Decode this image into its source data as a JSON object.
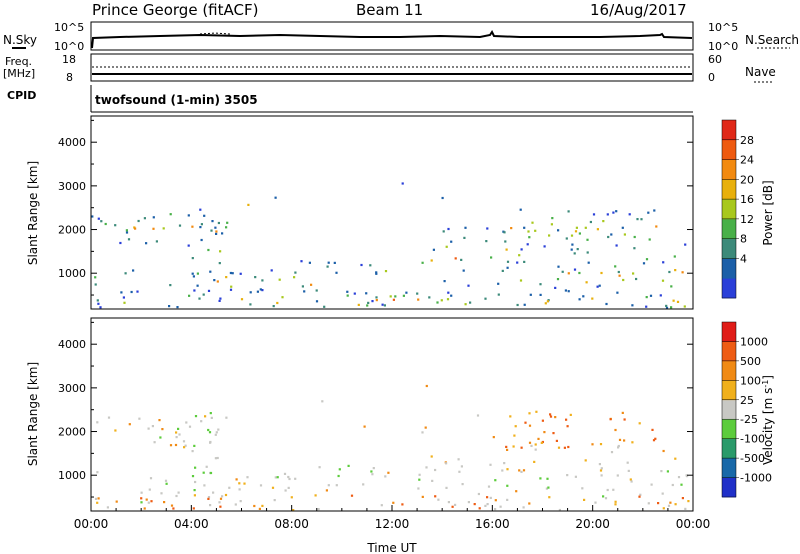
{
  "header": {
    "site": "Prince George (fitACF)",
    "beam": "Beam 11",
    "date": "16/Aug/2017"
  },
  "panels": {
    "nsky": {
      "left_label": "N.Sky",
      "right_label": "N.Search",
      "left_ticks": [
        "10^5",
        "10^0"
      ],
      "right_ticks": [
        "10^5",
        "10^0"
      ]
    },
    "freq": {
      "left_label_1": "Freq.",
      "left_label_2": "[MHz]",
      "right_label": "Nave",
      "left_ticks": [
        "18",
        "8"
      ],
      "right_ticks": [
        "60",
        "0"
      ]
    },
    "cpid": {
      "label": "CPID",
      "text": "twofsound (1-min) 3505"
    }
  },
  "chart_data": [
    {
      "type": "heatmap",
      "name": "power",
      "ylabel": "Slant Range [km]",
      "yticks": [
        1000,
        2000,
        3000,
        4000
      ],
      "ylim": [
        180,
        4600
      ],
      "xlim": [
        0,
        24
      ],
      "colorbar": {
        "label": "Power [dB]",
        "ticks": [
          "28",
          "24",
          "20",
          "16",
          "12",
          "8",
          "4"
        ],
        "colors": [
          "#2a3fd8",
          "#1b5fa8",
          "#3c8a7a",
          "#48b048",
          "#a8c81c",
          "#e8b00c",
          "#f28a10",
          "#ee5a10",
          "#e02818"
        ]
      }
    },
    {
      "type": "heatmap",
      "name": "velocity",
      "ylabel": "Slant Range [km]",
      "yticks": [
        1000,
        2000,
        3000,
        4000
      ],
      "ylim": [
        180,
        4600
      ],
      "xlim": [
        0,
        24
      ],
      "xlabel": "Time UT",
      "xticks": [
        "00:00",
        "04:00",
        "08:00",
        "12:00",
        "16:00",
        "20:00",
        "00:00"
      ],
      "colorbar": {
        "label": "Velocity [m s",
        "label_sup": "-1",
        "label_end": "]",
        "ticks": [
          "1000",
          "500",
          "100",
          "25",
          "-25",
          "-100",
          "-500",
          "-1000"
        ],
        "colors": [
          "#2030c8",
          "#1868a8",
          "#2a9a6a",
          "#5ccc3c",
          "#c8c8c4",
          "#f0b01c",
          "#f08a14",
          "#ee5c14",
          "#e01c18"
        ]
      }
    }
  ]
}
